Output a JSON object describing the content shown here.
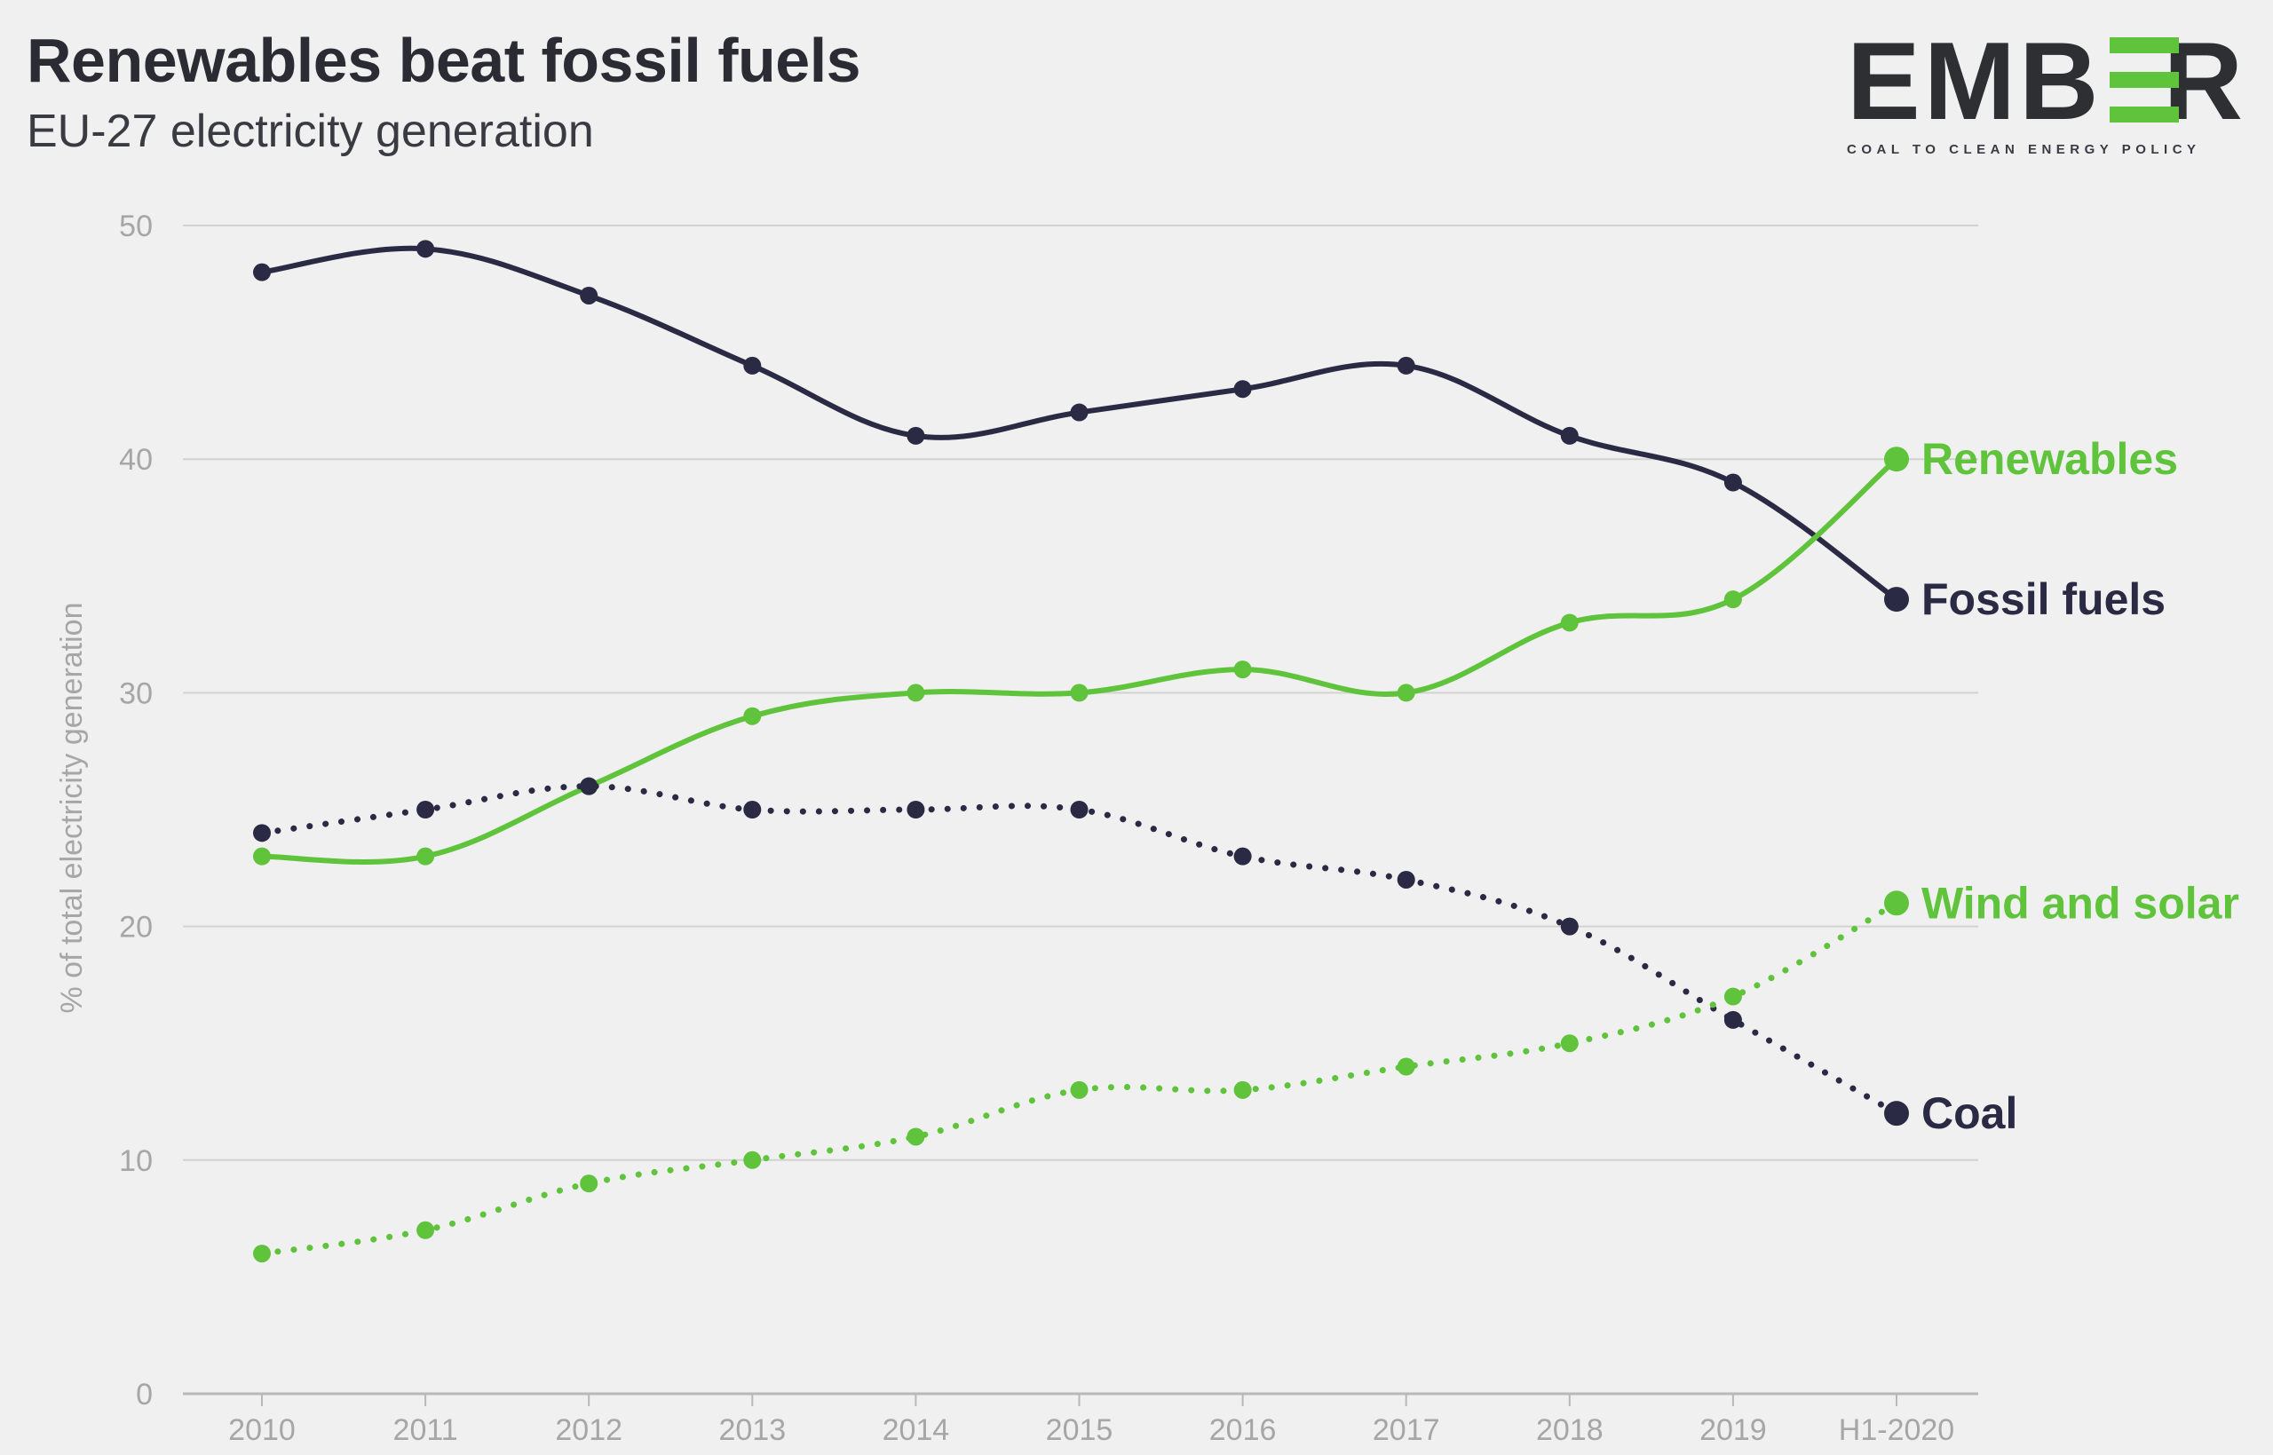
{
  "header": {
    "title": "Renewables beat fossil fuels",
    "subtitle": "EU-27 electricity generation"
  },
  "logo": {
    "wordmark_left": "EMB",
    "wordmark_right": "R",
    "tagline": "COAL TO CLEAN ENERGY POLICY"
  },
  "colors": {
    "dark": "#2b2a45",
    "green": "#5fc33b",
    "grid": "#d2d2d2",
    "axis": "#a6a6a6"
  },
  "chart_data": {
    "type": "line",
    "title": "Renewables beat fossil fuels",
    "subtitle": "EU-27 electricity generation",
    "xlabel": "",
    "ylabel": "% of total electricity generation",
    "ylim": [
      0,
      50
    ],
    "yticks": [
      0,
      10,
      20,
      30,
      40,
      50
    ],
    "grid": true,
    "legend": "inline labels at series end (right)",
    "categories": [
      "2010",
      "2011",
      "2012",
      "2013",
      "2014",
      "2015",
      "2016",
      "2017",
      "2018",
      "2019",
      "H1-2020"
    ],
    "series": [
      {
        "name": "Fossil fuels",
        "color": "#2b2a45",
        "style": "solid",
        "values": [
          48,
          49,
          47,
          44,
          41,
          42,
          43,
          44,
          41,
          39,
          34
        ]
      },
      {
        "name": "Renewables",
        "color": "#5fc33b",
        "style": "solid",
        "values": [
          23,
          23,
          26,
          29,
          30,
          30,
          31,
          30,
          33,
          34,
          40
        ]
      },
      {
        "name": "Coal",
        "color": "#2b2a45",
        "style": "dotted",
        "values": [
          24,
          25,
          26,
          25,
          25,
          25,
          23,
          22,
          20,
          16,
          12
        ]
      },
      {
        "name": "Wind and solar",
        "color": "#5fc33b",
        "style": "dotted",
        "values": [
          6,
          7,
          9,
          10,
          11,
          13,
          13,
          14,
          15,
          17,
          21
        ]
      }
    ]
  }
}
